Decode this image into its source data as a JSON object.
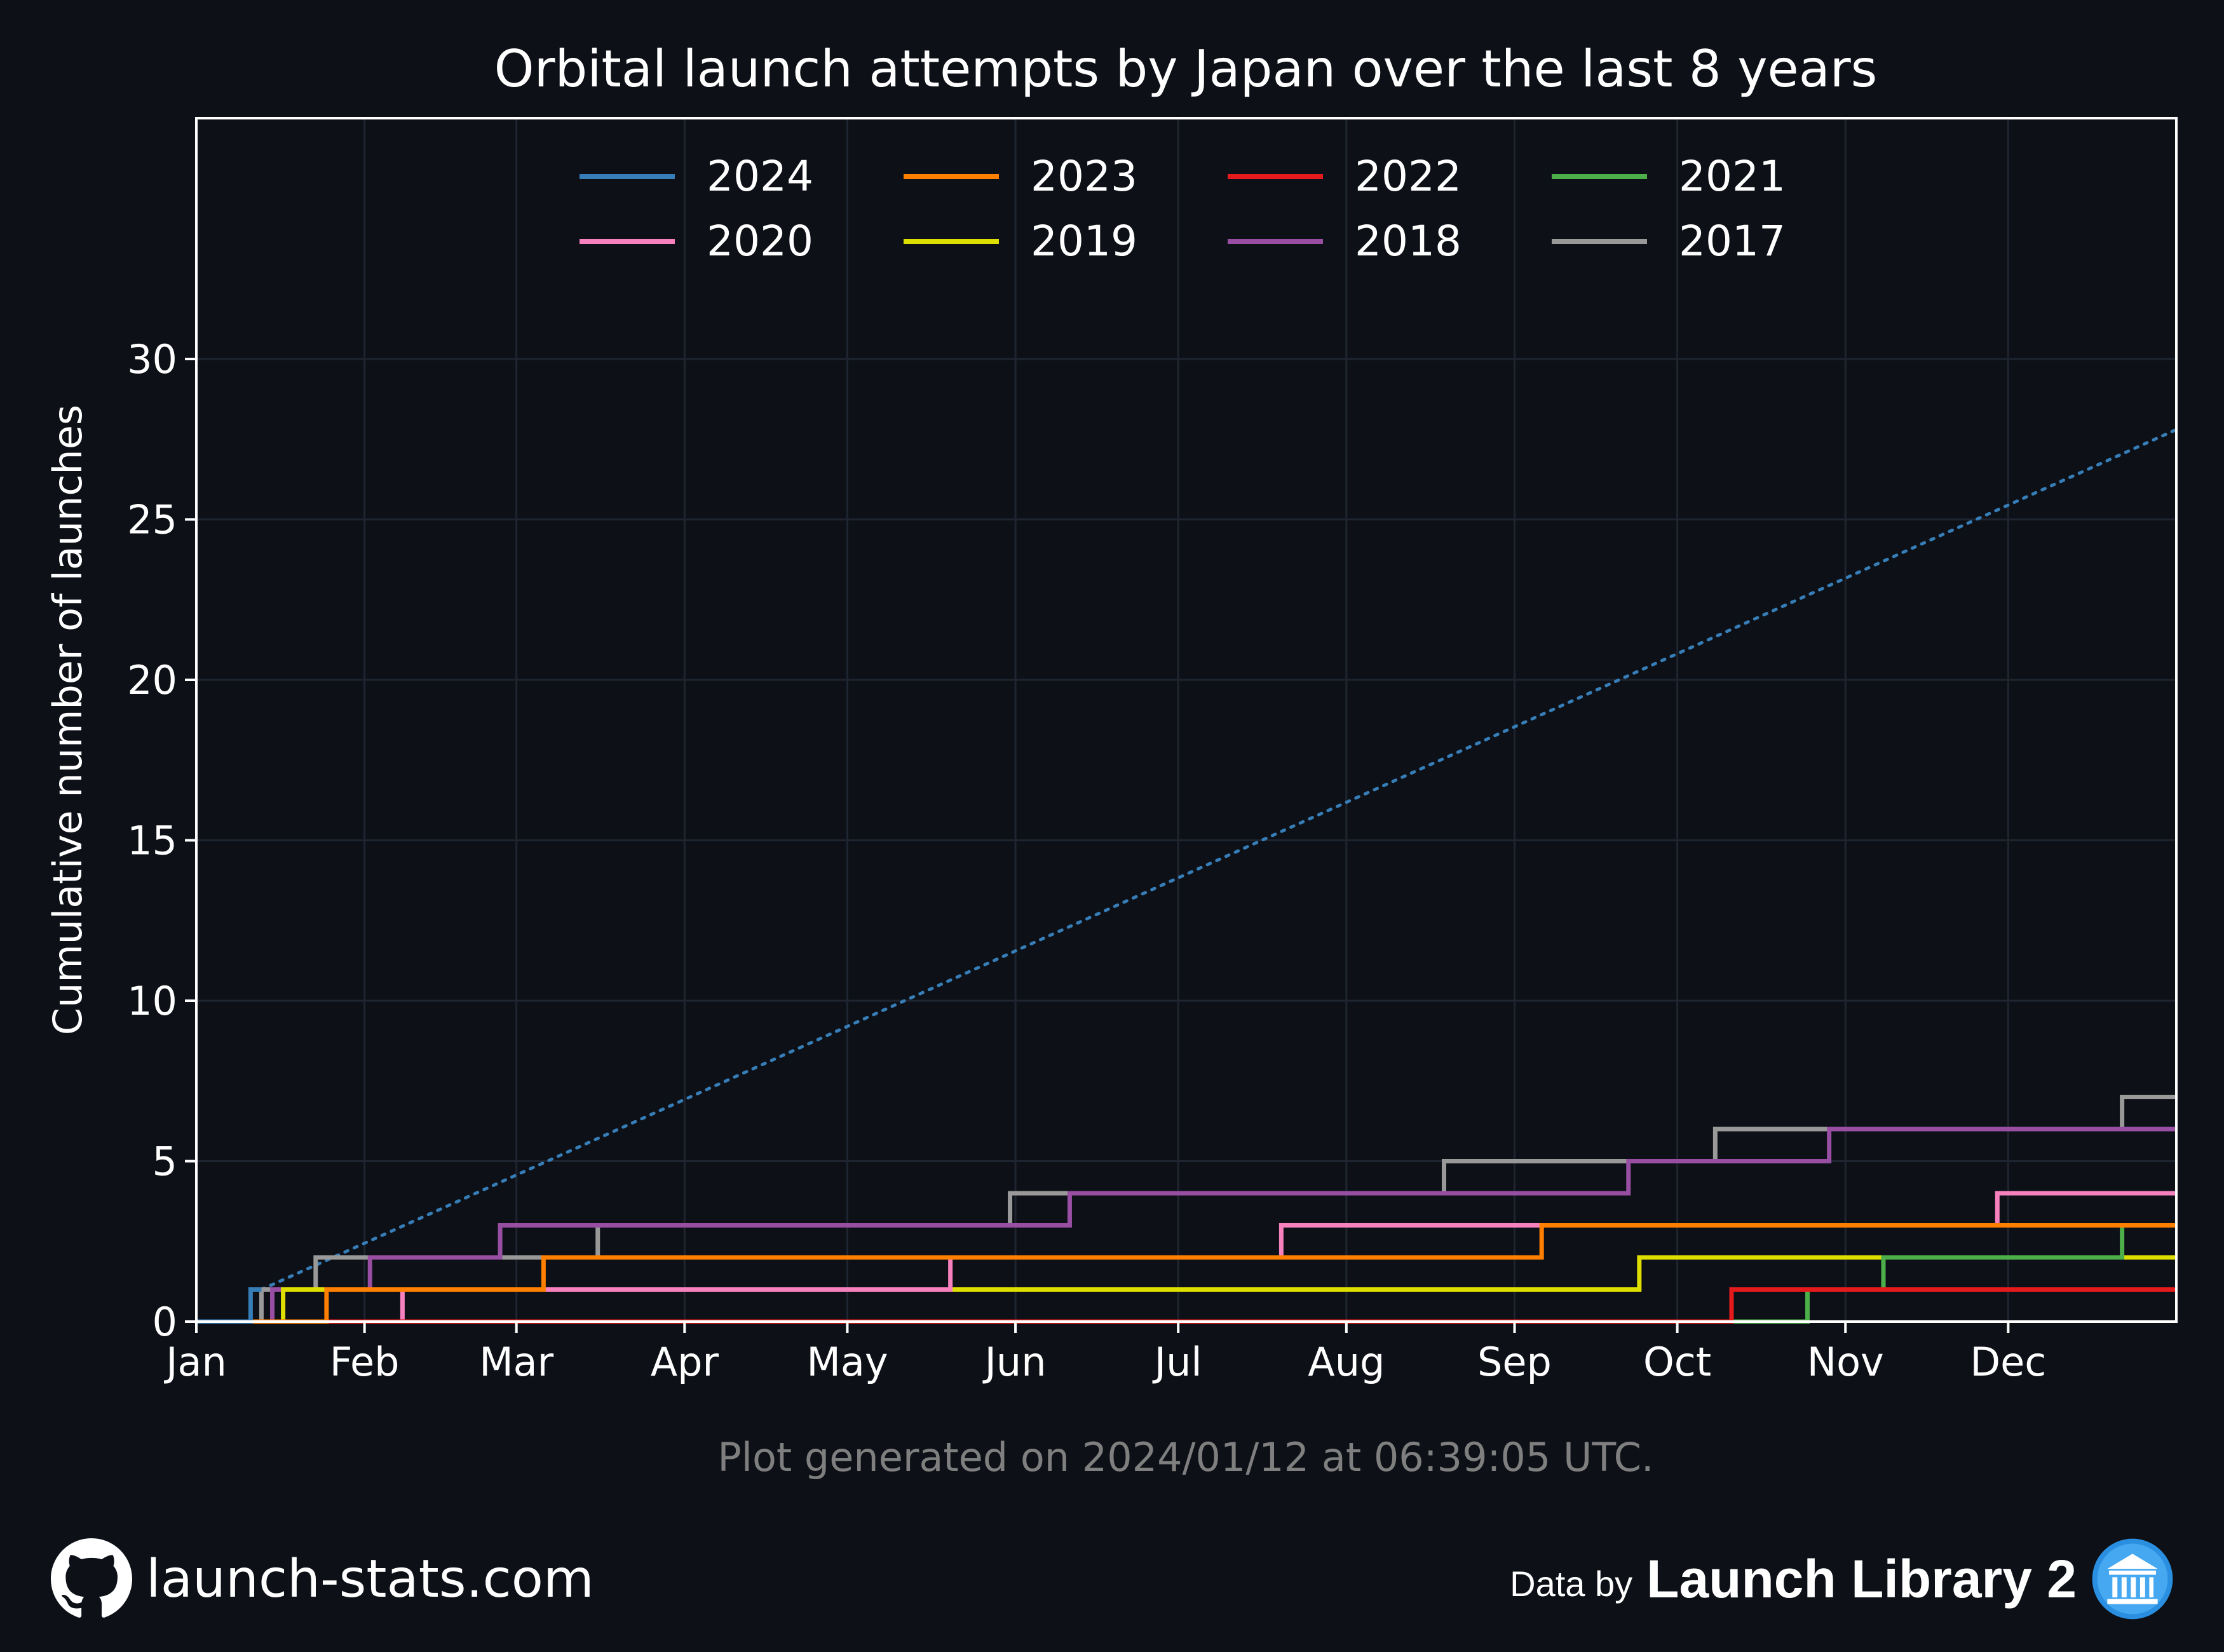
{
  "chart_data": {
    "type": "line",
    "title": "Orbital launch attempts by Japan over the last 8 years",
    "ylabel": "Cumulative number of launches",
    "xlabel": "",
    "x_unit": "day of year",
    "xlim": [
      0,
      365
    ],
    "ylim": [
      0,
      36
    ],
    "yticks": [
      0,
      5,
      10,
      15,
      20,
      25,
      30
    ],
    "xtick_labels": [
      "Jan",
      "Feb",
      "Mar",
      "Apr",
      "May",
      "Jun",
      "Jul",
      "Aug",
      "Sep",
      "Oct",
      "Nov",
      "Dec"
    ],
    "xtick_days": [
      0,
      31,
      59,
      90,
      120,
      151,
      181,
      212,
      243,
      273,
      304,
      334
    ],
    "grid": true,
    "legend": "top-center, 4 columns",
    "series": [
      {
        "name": "2024",
        "color": "#377eb8",
        "steps": [
          [
            10,
            1
          ]
        ],
        "end": 12
      },
      {
        "name": "2023",
        "color": "#ff7f00",
        "steps": [
          [
            24,
            1
          ],
          [
            64,
            2
          ],
          [
            248,
            3
          ],
          [
            364,
            3
          ]
        ]
      },
      {
        "name": "2022",
        "color": "#e41a1c",
        "steps": [
          [
            283,
            1
          ]
        ]
      },
      {
        "name": "2021",
        "color": "#4daf4a",
        "steps": [
          [
            297,
            1
          ],
          [
            311,
            2
          ],
          [
            355,
            3
          ]
        ]
      },
      {
        "name": "2020",
        "color": "#f781bf",
        "steps": [
          [
            38,
            1
          ],
          [
            139,
            2
          ],
          [
            200,
            3
          ],
          [
            332,
            4
          ]
        ]
      },
      {
        "name": "2019",
        "color": "#dede00",
        "steps": [
          [
            16,
            1
          ],
          [
            266,
            2
          ]
        ]
      },
      {
        "name": "2018",
        "color": "#984ea3",
        "steps": [
          [
            14,
            1
          ],
          [
            32,
            2
          ],
          [
            56,
            3
          ],
          [
            161,
            4
          ],
          [
            264,
            5
          ],
          [
            301,
            6
          ]
        ]
      },
      {
        "name": "2017",
        "color": "#999999",
        "steps": [
          [
            12,
            1
          ],
          [
            22,
            2
          ],
          [
            74,
            3
          ],
          [
            150,
            4
          ],
          [
            230,
            5
          ],
          [
            280,
            6
          ],
          [
            355,
            7
          ]
        ]
      }
    ],
    "projection": {
      "name": "2024 projection",
      "color": "#377eb8",
      "style": "dotted",
      "from": [
        12,
        1
      ],
      "to": [
        365,
        27.8
      ]
    },
    "annotation": "Plot generated on 2024/01/12 at 06:39:05 UTC."
  },
  "footer": {
    "site": "launch-stats.com",
    "data_by": "Data by",
    "source": "Launch Library 2",
    "site_icon": "github-icon",
    "source_icon": "library-icon"
  }
}
